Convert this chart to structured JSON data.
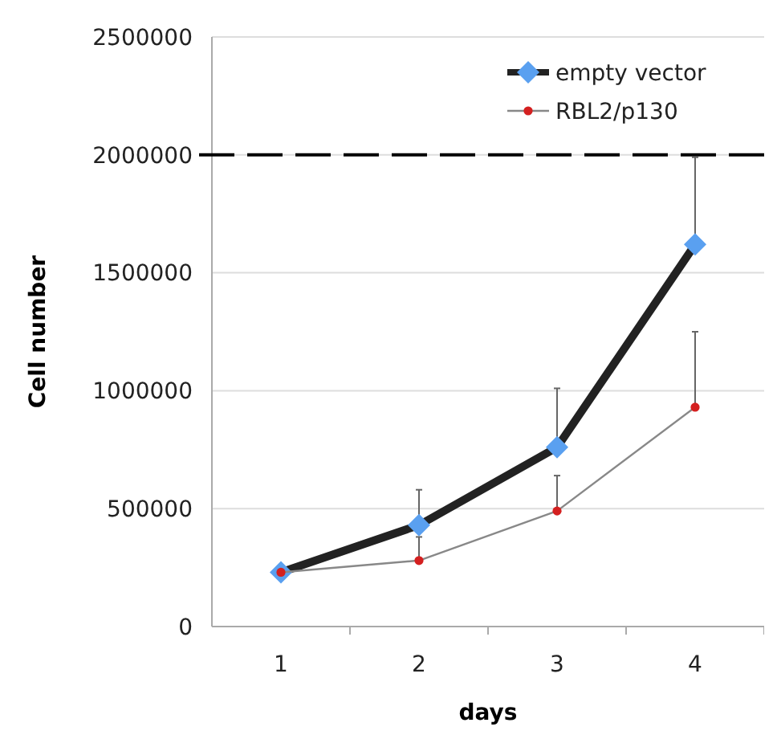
{
  "chart_data": {
    "type": "line",
    "xlabel": "days",
    "ylabel": "Cell number",
    "categories": [
      "1",
      "2",
      "3",
      "4"
    ],
    "series": [
      {
        "name": "empty vector",
        "color": "#5aa0f0",
        "marker": "diamond",
        "values": [
          230000,
          430000,
          760000,
          1620000
        ],
        "errors": [
          null,
          [
            430000,
            580000
          ],
          [
            760000,
            1010000
          ],
          [
            1620000,
            1990000
          ]
        ]
      },
      {
        "name": "RBL2/p130",
        "color": "#d42020",
        "marker": "circle",
        "values": [
          230000,
          280000,
          490000,
          930000
        ],
        "errors": [
          null,
          [
            280000,
            380000
          ],
          [
            490000,
            640000
          ],
          [
            930000,
            1250000
          ]
        ]
      }
    ],
    "ylim": [
      0,
      2500000
    ],
    "yticks": [
      0,
      500000,
      1000000,
      1500000,
      2000000,
      2500000
    ],
    "grid": "y",
    "legend": "top right",
    "ref_lines": [
      {
        "axis": "y",
        "value": 2000000,
        "color": "#000000",
        "line_style": "dashed"
      }
    ]
  }
}
